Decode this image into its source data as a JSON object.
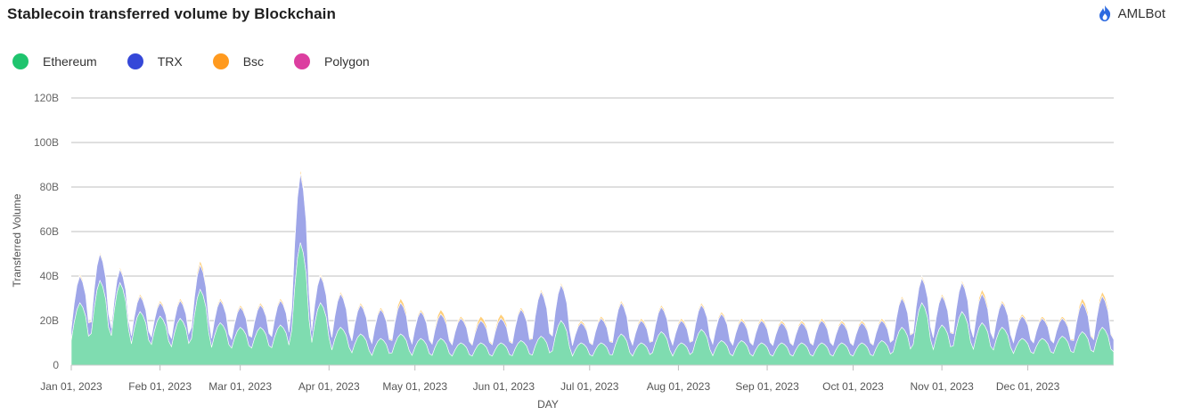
{
  "header": {
    "title": "Stablecoin transferred volume by Blockchain",
    "brand_name": "AMLBot",
    "brand_icon": "flame-logo-icon",
    "brand_color": "#2d6ae0"
  },
  "chart_data": {
    "type": "area",
    "stacked": true,
    "title": "Stablecoin transferred volume by Blockchain",
    "xlabel": "DAY",
    "ylabel": "Transferred Volume",
    "ylim": [
      0,
      120
    ],
    "y_unit": "B",
    "yticks": [
      "0",
      "20B",
      "40B",
      "60B",
      "80B",
      "100B",
      "120B"
    ],
    "xticks": [
      "Jan 01, 2023",
      "Feb 01, 2023",
      "Mar 01, 2023",
      "Apr 01, 2023",
      "May 01, 2023",
      "Jun 01, 2023",
      "Jul 01, 2023",
      "Aug 01, 2023",
      "Sep 01, 2023",
      "Oct 01, 2023",
      "Nov 01, 2023",
      "Dec 01, 2023"
    ],
    "x_start": "2023-01-01",
    "x_end": "2023-12-31",
    "grid": true,
    "legend_position": "top-left",
    "legend": [
      {
        "name": "Ethereum",
        "color": "#1fc46e"
      },
      {
        "name": "TRX",
        "color": "#3548d8"
      },
      {
        "name": "Bsc",
        "color": "#ff9a1f"
      },
      {
        "name": "Polygon",
        "color": "#dc3ea0"
      }
    ],
    "series_colors": {
      "Ethereum": "#7fdcb0",
      "TRX": "#9ea5e8",
      "Bsc": "#ffcf7a",
      "Polygon": "#f0a8d4"
    },
    "weeks": [
      "2023-01-01",
      "2023-01-08",
      "2023-01-15",
      "2023-01-22",
      "2023-01-29",
      "2023-02-05",
      "2023-02-12",
      "2023-02-19",
      "2023-02-26",
      "2023-03-05",
      "2023-03-12",
      "2023-03-19",
      "2023-03-26",
      "2023-04-02",
      "2023-04-09",
      "2023-04-16",
      "2023-04-23",
      "2023-04-30",
      "2023-05-07",
      "2023-05-14",
      "2023-05-21",
      "2023-05-28",
      "2023-06-04",
      "2023-06-11",
      "2023-06-18",
      "2023-06-25",
      "2023-07-02",
      "2023-07-09",
      "2023-07-16",
      "2023-07-23",
      "2023-07-30",
      "2023-08-06",
      "2023-08-13",
      "2023-08-20",
      "2023-08-27",
      "2023-09-03",
      "2023-09-10",
      "2023-09-17",
      "2023-09-24",
      "2023-10-01",
      "2023-10-08",
      "2023-10-15",
      "2023-10-22",
      "2023-10-29",
      "2023-11-05",
      "2023-11-12",
      "2023-11-19",
      "2023-11-26",
      "2023-12-03",
      "2023-12-10",
      "2023-12-17",
      "2023-12-24"
    ],
    "series": [
      {
        "name": "Ethereum",
        "peak": [
          28,
          38,
          37,
          24,
          22,
          21,
          34,
          19,
          17,
          17,
          18,
          55,
          28,
          17,
          14,
          12,
          14,
          12,
          12,
          10,
          10,
          10,
          11,
          13,
          20,
          10,
          10,
          14,
          10,
          15,
          10,
          16,
          11,
          11,
          10,
          10,
          10,
          10,
          10,
          10,
          11,
          17,
          28,
          18,
          24,
          19,
          17,
          12,
          12,
          13,
          15,
          17
        ],
        "trough": [
          8,
          10,
          9,
          7,
          7,
          6,
          8,
          6,
          6,
          6,
          6,
          9,
          7,
          5,
          4,
          3,
          4,
          3,
          3,
          3,
          3,
          3,
          3,
          3,
          4,
          3,
          3,
          3,
          3,
          4,
          3,
          4,
          3,
          3,
          3,
          3,
          3,
          3,
          3,
          3,
          3,
          4,
          6,
          5,
          6,
          5,
          5,
          4,
          4,
          4,
          4,
          4
        ]
      },
      {
        "name": "TRX",
        "peak": [
          12,
          12,
          6,
          7,
          6,
          8,
          11,
          10,
          9,
          10,
          11,
          31,
          12,
          15,
          13,
          13,
          14,
          12,
          11,
          11,
          10,
          11,
          14,
          20,
          16,
          9,
          11,
          14,
          10,
          11,
          10,
          11,
          12,
          9,
          10,
          9,
          9,
          10,
          9,
          9,
          9,
          13,
          11,
          13,
          13,
          13,
          11,
          10,
          9,
          8,
          13,
          14
        ],
        "trough": [
          4,
          4,
          3,
          3,
          3,
          3,
          4,
          3,
          3,
          4,
          4,
          6,
          4,
          4,
          4,
          4,
          4,
          4,
          4,
          4,
          4,
          4,
          4,
          5,
          5,
          4,
          4,
          4,
          4,
          4,
          4,
          4,
          4,
          4,
          4,
          4,
          4,
          4,
          4,
          4,
          4,
          4,
          4,
          4,
          4,
          4,
          4,
          4,
          4,
          4,
          4,
          4
        ]
      },
      {
        "name": "Bsc",
        "peak": [
          1,
          1,
          1,
          1,
          1,
          1,
          2,
          1,
          1,
          1,
          1,
          2,
          1,
          1,
          1,
          1,
          2,
          1,
          2,
          1,
          2,
          2,
          1,
          1,
          1,
          1,
          1,
          1,
          1,
          1,
          1,
          1,
          1,
          1,
          1,
          1,
          1,
          1,
          1,
          1,
          1,
          1,
          1,
          1,
          1,
          2,
          1,
          1,
          1,
          1,
          2,
          2
        ],
        "trough": [
          0.3,
          0.3,
          0.3,
          0.3,
          0.3,
          0.3,
          0.3,
          0.3,
          0.3,
          0.3,
          0.3,
          0.3,
          0.3,
          0.3,
          0.3,
          0.3,
          0.3,
          0.3,
          0.3,
          0.3,
          0.3,
          0.3,
          0.3,
          0.3,
          0.3,
          0.3,
          0.3,
          0.3,
          0.3,
          0.3,
          0.3,
          0.3,
          0.3,
          0.3,
          0.3,
          0.3,
          0.3,
          0.3,
          0.3,
          0.3,
          0.3,
          0.3,
          0.3,
          0.3,
          0.3,
          0.3,
          0.3,
          0.3,
          0.3,
          0.3,
          0.3,
          0.3
        ]
      },
      {
        "name": "Polygon",
        "peak": [
          0.2,
          0.2,
          0.2,
          0.2,
          0.2,
          0.2,
          0.2,
          0.2,
          0.2,
          0.2,
          0.2,
          0.3,
          0.2,
          0.2,
          0.2,
          0.2,
          0.2,
          0.2,
          0.2,
          0.2,
          0.2,
          0.2,
          0.2,
          0.2,
          0.2,
          0.2,
          0.2,
          0.2,
          0.2,
          0.2,
          0.2,
          0.2,
          0.2,
          0.2,
          0.2,
          0.2,
          0.2,
          0.2,
          0.2,
          0.2,
          0.2,
          0.2,
          0.2,
          0.2,
          0.2,
          0.2,
          0.2,
          0.2,
          0.2,
          0.2,
          0.2,
          0.2
        ],
        "trough": [
          0.1,
          0.1,
          0.1,
          0.1,
          0.1,
          0.1,
          0.1,
          0.1,
          0.1,
          0.1,
          0.1,
          0.1,
          0.1,
          0.1,
          0.1,
          0.1,
          0.1,
          0.1,
          0.1,
          0.1,
          0.1,
          0.1,
          0.1,
          0.1,
          0.1,
          0.1,
          0.1,
          0.1,
          0.1,
          0.1,
          0.1,
          0.1,
          0.1,
          0.1,
          0.1,
          0.1,
          0.1,
          0.1,
          0.1,
          0.1,
          0.1,
          0.1,
          0.1,
          0.1,
          0.1,
          0.1,
          0.1,
          0.1,
          0.1,
          0.1,
          0.1,
          0.1
        ]
      }
    ]
  }
}
